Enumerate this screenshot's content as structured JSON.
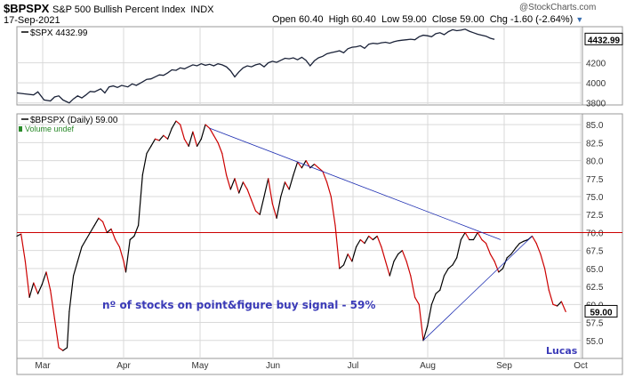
{
  "header": {
    "symbol": "$BPSPX",
    "name": "S&P 500 Bullish Percent Index",
    "exchange": "INDX",
    "date": "17-Sep-2021",
    "source": "@StockCharts.com",
    "quote": {
      "open_label": "Open",
      "open": "60.40",
      "high_label": "High",
      "high": "60.40",
      "low_label": "Low",
      "low": "59.00",
      "close_label": "Close",
      "close": "59.00",
      "chg_label": "Chg",
      "chg": "-1.60 (-2.64%)"
    }
  },
  "colors": {
    "spx_line": "#1a2238",
    "bp_up": "#000000",
    "bp_down": "#cc0000",
    "hline": "#cc0000",
    "trendline": "#1a2bb0",
    "annotation": "#3b3bb8",
    "volume_text": "#2a8a2a",
    "price_tag_bg": "#ffffff",
    "grid": "#d9d9d9"
  },
  "chart_data": [
    {
      "type": "line",
      "legend": "$SPX 4432.99",
      "last_value_label": "4432.99",
      "ylim": [
        3780,
        4560
      ],
      "y_ticks": [
        3800,
        4000,
        4200
      ],
      "x_months": [
        "Mar",
        "Apr",
        "May",
        "Jun",
        "Jul",
        "Aug",
        "Sep",
        "Oct"
      ],
      "series": [
        {
          "values": [
            [
              0,
              3900
            ],
            [
              4,
              3890
            ],
            [
              8,
              3880
            ],
            [
              10,
              3910
            ],
            [
              13,
              3830
            ],
            [
              16,
              3820
            ],
            [
              18,
              3860
            ],
            [
              20,
              3870
            ],
            [
              22,
              3830
            ],
            [
              25,
              3800
            ],
            [
              27,
              3840
            ],
            [
              29,
              3870
            ],
            [
              31,
              3850
            ],
            [
              33,
              3880
            ],
            [
              35,
              3915
            ],
            [
              37,
              3910
            ],
            [
              40,
              3940
            ],
            [
              42,
              3900
            ],
            [
              44,
              3960
            ],
            [
              46,
              3970
            ],
            [
              48,
              3955
            ],
            [
              50,
              3975
            ],
            [
              53,
              3960
            ],
            [
              55,
              3990
            ],
            [
              57,
              3975
            ],
            [
              60,
              4010
            ],
            [
              62,
              4035
            ],
            [
              64,
              4040
            ],
            [
              66,
              4060
            ],
            [
              68,
              4080
            ],
            [
              70,
              4075
            ],
            [
              72,
              4100
            ],
            [
              74,
              4130
            ],
            [
              76,
              4125
            ],
            [
              78,
              4150
            ],
            [
              80,
              4140
            ],
            [
              82,
              4160
            ],
            [
              84,
              4180
            ],
            [
              86,
              4170
            ],
            [
              88,
              4190
            ],
            [
              90,
              4175
            ],
            [
              92,
              4185
            ],
            [
              94,
              4170
            ],
            [
              96,
              4190
            ],
            [
              98,
              4180
            ],
            [
              100,
              4160
            ],
            [
              102,
              4120
            ],
            [
              104,
              4060
            ],
            [
              106,
              4110
            ],
            [
              108,
              4150
            ],
            [
              110,
              4170
            ],
            [
              112,
              4160
            ],
            [
              114,
              4180
            ],
            [
              116,
              4190
            ],
            [
              118,
              4160
            ],
            [
              120,
              4200
            ],
            [
              122,
              4215
            ],
            [
              124,
              4205
            ],
            [
              126,
              4225
            ],
            [
              128,
              4245
            ],
            [
              130,
              4240
            ],
            [
              132,
              4250
            ],
            [
              134,
              4230
            ],
            [
              136,
              4255
            ],
            [
              138,
              4225
            ],
            [
              140,
              4170
            ],
            [
              142,
              4220
            ],
            [
              144,
              4250
            ],
            [
              146,
              4265
            ],
            [
              148,
              4290
            ],
            [
              150,
              4300
            ],
            [
              152,
              4310
            ],
            [
              154,
              4320
            ],
            [
              156,
              4300
            ],
            [
              158,
              4340
            ],
            [
              160,
              4355
            ],
            [
              162,
              4360
            ],
            [
              164,
              4370
            ],
            [
              166,
              4345
            ],
            [
              168,
              4385
            ],
            [
              170,
              4395
            ],
            [
              172,
              4390
            ],
            [
              174,
              4400
            ],
            [
              176,
              4405
            ],
            [
              178,
              4395
            ],
            [
              180,
              4410
            ],
            [
              182,
              4420
            ],
            [
              184,
              4425
            ],
            [
              186,
              4430
            ],
            [
              188,
              4435
            ],
            [
              190,
              4430
            ],
            [
              192,
              4460
            ],
            [
              194,
              4475
            ],
            [
              196,
              4470
            ],
            [
              198,
              4460
            ],
            [
              200,
              4490
            ],
            [
              202,
              4500
            ],
            [
              204,
              4480
            ],
            [
              206,
              4510
            ],
            [
              208,
              4530
            ],
            [
              210,
              4520
            ],
            [
              212,
              4525
            ],
            [
              214,
              4535
            ],
            [
              216,
              4515
            ],
            [
              218,
              4500
            ],
            [
              220,
              4485
            ],
            [
              222,
              4475
            ],
            [
              224,
              4465
            ],
            [
              226,
              4445
            ],
            [
              228,
              4433
            ]
          ]
        }
      ]
    },
    {
      "type": "line",
      "legend": "$BPSPX (Daily) 59.00",
      "volume_label": "Volume undef",
      "last_value_label": "59.00",
      "ylim": [
        52.5,
        86.5
      ],
      "y_ticks": [
        "55.0",
        "57.5",
        "60.0",
        "62.5",
        "65.0",
        "67.5",
        "70.0",
        "72.5",
        "75.0",
        "77.5",
        "80.0",
        "82.5",
        "85.0"
      ],
      "x_months": [
        "Mar",
        "Apr",
        "May",
        "Jun",
        "Jul",
        "Aug",
        "Sep",
        "Oct"
      ],
      "horizontal_line": 70.0,
      "annotation": "nº of stocks on point&figure buy signal - 59%",
      "signature": "Lucas",
      "series": [
        {
          "values": [
            [
              0,
              69.5
            ],
            [
              2,
              69.8
            ],
            [
              4,
              66
            ],
            [
              6,
              61
            ],
            [
              8,
              63
            ],
            [
              10,
              61.5
            ],
            [
              12,
              62.8
            ],
            [
              14,
              64.5
            ],
            [
              16,
              62
            ],
            [
              18,
              58
            ],
            [
              20,
              54
            ],
            [
              22,
              53.6
            ],
            [
              24,
              54
            ],
            [
              25,
              59
            ],
            [
              27,
              64
            ],
            [
              29,
              66
            ],
            [
              31,
              68
            ],
            [
              33,
              69
            ],
            [
              35,
              70
            ],
            [
              37,
              71
            ],
            [
              39,
              72
            ],
            [
              41,
              71.5
            ],
            [
              43,
              70
            ],
            [
              45,
              70.5
            ],
            [
              47,
              69
            ],
            [
              49,
              68
            ],
            [
              51,
              66
            ],
            [
              52,
              64.5
            ],
            [
              54,
              69
            ],
            [
              56,
              69.5
            ],
            [
              58,
              71
            ],
            [
              60,
              78
            ],
            [
              62,
              81
            ],
            [
              64,
              82
            ],
            [
              66,
              83
            ],
            [
              68,
              82.8
            ],
            [
              70,
              83.5
            ],
            [
              72,
              83
            ],
            [
              74,
              84.5
            ],
            [
              76,
              85.5
            ],
            [
              78,
              85
            ],
            [
              80,
              83
            ],
            [
              82,
              82
            ],
            [
              84,
              84
            ],
            [
              86,
              82
            ],
            [
              88,
              83
            ],
            [
              90,
              85
            ],
            [
              92,
              84.5
            ],
            [
              94,
              83.5
            ],
            [
              96,
              82.5
            ],
            [
              98,
              81
            ],
            [
              100,
              78
            ],
            [
              102,
              76
            ],
            [
              104,
              77.5
            ],
            [
              106,
              75.5
            ],
            [
              108,
              77
            ],
            [
              110,
              76
            ],
            [
              112,
              74.5
            ],
            [
              114,
              73
            ],
            [
              116,
              72.5
            ],
            [
              118,
              75
            ],
            [
              120,
              77.5
            ],
            [
              122,
              74
            ],
            [
              124,
              72
            ],
            [
              126,
              75
            ],
            [
              128,
              77
            ],
            [
              130,
              76
            ],
            [
              132,
              78
            ],
            [
              134,
              79.8
            ],
            [
              136,
              79
            ],
            [
              138,
              80
            ],
            [
              140,
              79
            ],
            [
              142,
              79.5
            ],
            [
              144,
              79
            ],
            [
              146,
              78.5
            ],
            [
              148,
              77
            ],
            [
              150,
              75
            ],
            [
              152,
              71
            ],
            [
              154,
              65
            ],
            [
              156,
              65.5
            ],
            [
              158,
              67
            ],
            [
              160,
              66
            ],
            [
              162,
              68
            ],
            [
              164,
              69
            ],
            [
              166,
              68.5
            ],
            [
              168,
              69.5
            ],
            [
              170,
              69
            ],
            [
              172,
              69.5
            ],
            [
              174,
              68
            ],
            [
              176,
              66
            ],
            [
              178,
              64
            ],
            [
              180,
              66
            ],
            [
              182,
              67
            ],
            [
              184,
              67.5
            ],
            [
              186,
              66
            ],
            [
              188,
              64
            ],
            [
              190,
              61
            ],
            [
              192,
              60
            ],
            [
              194,
              55
            ],
            [
              196,
              57
            ],
            [
              198,
              60
            ],
            [
              200,
              61.5
            ],
            [
              202,
              62
            ],
            [
              204,
              64
            ],
            [
              206,
              65
            ],
            [
              208,
              65.5
            ],
            [
              210,
              66.5
            ],
            [
              212,
              69
            ],
            [
              214,
              70
            ],
            [
              216,
              69
            ],
            [
              218,
              69
            ],
            [
              220,
              70
            ],
            [
              222,
              69
            ],
            [
              224,
              68.5
            ],
            [
              226,
              67
            ],
            [
              228,
              66
            ],
            [
              230,
              64.5
            ],
            [
              232,
              65
            ],
            [
              234,
              66.5
            ],
            [
              236,
              67
            ],
            [
              238,
              67.8
            ],
            [
              240,
              68.5
            ],
            [
              242,
              68.8
            ],
            [
              244,
              69
            ],
            [
              246,
              69.5
            ],
            [
              248,
              68.5
            ],
            [
              250,
              67
            ],
            [
              252,
              65
            ],
            [
              254,
              62
            ],
            [
              256,
              60
            ],
            [
              258,
              59.8
            ],
            [
              260,
              60.4
            ],
            [
              262,
              59
            ]
          ]
        }
      ]
    }
  ]
}
